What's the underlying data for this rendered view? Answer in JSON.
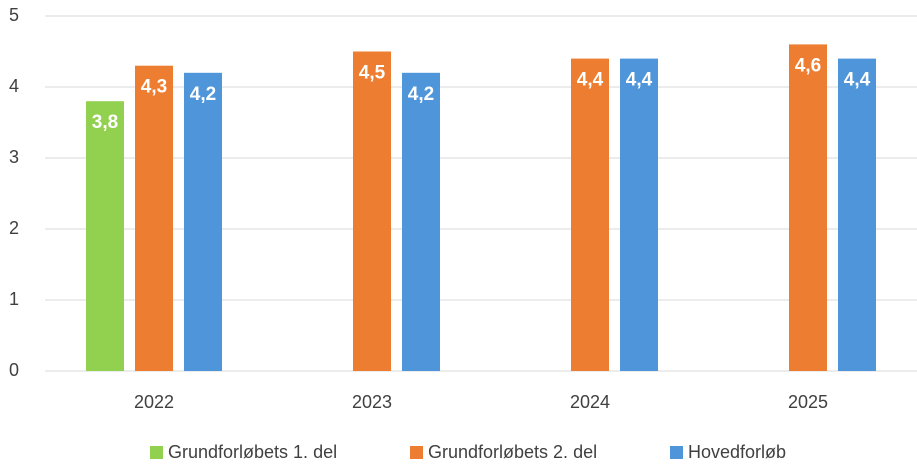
{
  "chart_data": {
    "type": "bar",
    "categories": [
      "2022",
      "2023",
      "2024",
      "2025"
    ],
    "series": [
      {
        "name": "Grundforløbets 1. del",
        "color": "#92d050",
        "values": [
          3.8,
          null,
          null,
          null
        ],
        "value_labels": [
          "3,8",
          null,
          null,
          null
        ]
      },
      {
        "name": "Grundforløbets 2. del",
        "color": "#ed7d31",
        "values": [
          4.3,
          4.5,
          4.4,
          4.6
        ],
        "value_labels": [
          "4,3",
          "4,5",
          "4,4",
          "4,6"
        ]
      },
      {
        "name": "Hovedforløb",
        "color": "#4e95d9",
        "values": [
          4.2,
          4.2,
          4.4,
          4.4
        ],
        "value_labels": [
          "4,2",
          "4,2",
          "4,4",
          "4,4"
        ]
      }
    ],
    "ylim": [
      0,
      5
    ],
    "yticks": [
      0,
      1,
      2,
      3,
      4,
      5
    ],
    "grid": true,
    "legend": "bottom"
  }
}
